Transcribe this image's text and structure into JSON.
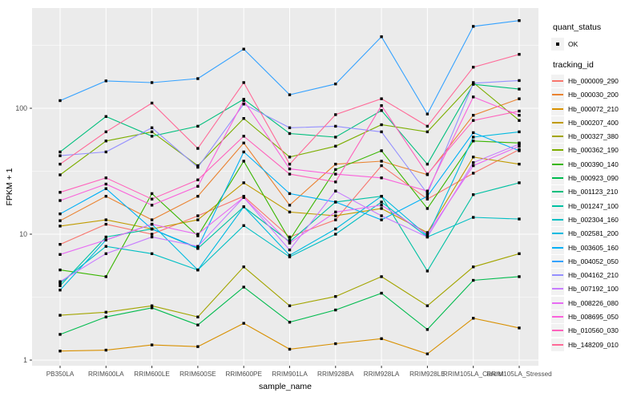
{
  "figure": {
    "y_axis": {
      "title": "FPKM + 1",
      "ticks": [
        "1",
        "10",
        "100"
      ]
    },
    "x_axis": {
      "title": "sample_name"
    },
    "legend": {
      "quant_status": {
        "title": "quant_status",
        "item_label": "OK"
      },
      "tracking_id": {
        "title": "tracking_id"
      }
    }
  },
  "colors": {
    "panel_bg": "#EBEBEB",
    "grid": "#FFFFFF",
    "axis_text": "#4D4D4D",
    "tick_mark": "#333333",
    "point": "#000000",
    "legend_key_bg": "#F2F2F2"
  },
  "chart_data": {
    "type": "line",
    "title": "",
    "xlabel": "sample_name",
    "ylabel": "FPKM + 1",
    "yscale": "log10",
    "ylim": [
      1,
      550
    ],
    "yticks": [
      1,
      10,
      100
    ],
    "yticks_minor": [
      3.1623,
      31.623,
      316.23
    ],
    "grid": "white major and minor gridlines on gray panel",
    "legend_position": "right",
    "point_marker": "small black square (quant_status = OK)",
    "x": [
      "PB350LA",
      "RRIM600LA",
      "RRIM600LE",
      "RRIM600SE",
      "RRIM600PE",
      "RRIM901LA",
      "RRIM928BA",
      "RRIM928LA",
      "RRIM928LE",
      "RRIM105LA_Control",
      "RRIM105LA_Stressed"
    ],
    "series": [
      {
        "name": "Hb_000009_290",
        "color": "#F8766D",
        "values": [
          8.3,
          12,
          10,
          14,
          20,
          9.5,
          13,
          35,
          19,
          30.5,
          47
        ]
      },
      {
        "name": "Hb_000030_200",
        "color": "#EA8331",
        "values": [
          12.8,
          20,
          13,
          20,
          53,
          17,
          36,
          38,
          29.7,
          88,
          119
        ]
      },
      {
        "name": "Hb_000072_210",
        "color": "#D89000",
        "values": [
          1.18,
          1.2,
          1.32,
          1.28,
          1.96,
          1.22,
          1.35,
          1.48,
          1.12,
          2.15,
          1.8
        ]
      },
      {
        "name": "Hb_000207_400",
        "color": "#C09B00",
        "values": [
          11.6,
          13,
          11,
          13,
          25.6,
          15,
          14,
          16,
          10.3,
          41,
          36
        ]
      },
      {
        "name": "Hb_000327_380",
        "color": "#A3A500",
        "values": [
          2.27,
          2.4,
          2.7,
          2.2,
          5.5,
          2.7,
          3.2,
          4.6,
          2.7,
          5.5,
          7.0
        ]
      },
      {
        "name": "Hb_000362_190",
        "color": "#7CAE00",
        "values": [
          29.6,
          55,
          65,
          35,
          83,
          41,
          50,
          74,
          65,
          160,
          80
        ]
      },
      {
        "name": "Hb_000390_140",
        "color": "#39B600",
        "values": [
          5.2,
          4.6,
          21,
          9.7,
          38,
          9,
          32.6,
          46,
          16,
          55,
          53
        ]
      },
      {
        "name": "Hb_000923_090",
        "color": "#00BB4E",
        "values": [
          1.6,
          2.2,
          2.6,
          1.9,
          3.8,
          2.0,
          2.5,
          3.4,
          1.75,
          4.3,
          4.6
        ]
      },
      {
        "name": "Hb_001123_210",
        "color": "#00BF7D",
        "values": [
          45,
          86,
          60,
          72,
          118,
          63,
          59,
          96,
          36,
          155,
          142
        ]
      },
      {
        "name": "Hb_001247_100",
        "color": "#00C1A3",
        "values": [
          3.9,
          9.5,
          11,
          7.7,
          16.5,
          8.7,
          18,
          20,
          5.1,
          20.6,
          25.6
        ]
      },
      {
        "name": "Hb_002304_160",
        "color": "#00BFC4",
        "values": [
          4.1,
          8,
          7,
          5.2,
          11.7,
          6.6,
          10,
          18,
          9.5,
          13.6,
          13.2
        ]
      },
      {
        "name": "Hb_002581_200",
        "color": "#00BAE0",
        "values": [
          3.6,
          9,
          12,
          5.2,
          16.5,
          6.8,
          11,
          20,
          9.7,
          59,
          65
        ]
      },
      {
        "name": "Hb_003605_160",
        "color": "#00B0F6",
        "values": [
          14.5,
          23,
          11,
          7.8,
          45,
          21,
          18,
          13,
          20,
          64,
          46
        ]
      },
      {
        "name": "Hb_004052_050",
        "color": "#35A2FF",
        "values": [
          115,
          165,
          160,
          172,
          295,
          128,
          156,
          370,
          90,
          447,
          497
        ]
      },
      {
        "name": "Hb_004162_210",
        "color": "#9590FF",
        "values": [
          42,
          45,
          70,
          34,
          108,
          70,
          72,
          65,
          21,
          158,
          166
        ]
      },
      {
        "name": "Hb_007192_100",
        "color": "#C77CFF",
        "values": [
          4.2,
          7,
          9.5,
          8,
          19.6,
          7.5,
          22,
          14,
          9.5,
          37,
          52
        ]
      },
      {
        "name": "Hb_008226_080",
        "color": "#E76BF3",
        "values": [
          6.9,
          9,
          12,
          10,
          19.6,
          8.5,
          15,
          17,
          10,
          35,
          50
        ]
      },
      {
        "name": "Hb_008695_050",
        "color": "#FA62DB",
        "values": [
          18.5,
          25,
          17,
          24,
          115,
          33,
          30,
          28,
          22,
          123,
          88
        ]
      },
      {
        "name": "Hb_010560_030",
        "color": "#FF62BC",
        "values": [
          21.5,
          28,
          19,
          27,
          60,
          30,
          26,
          105,
          30,
          80,
          95
        ]
      },
      {
        "name": "Hb_148209_010",
        "color": "#FF6A98",
        "values": [
          36,
          65,
          110,
          48,
          160,
          36,
          89,
          119,
          72,
          212,
          268
        ]
      }
    ]
  }
}
